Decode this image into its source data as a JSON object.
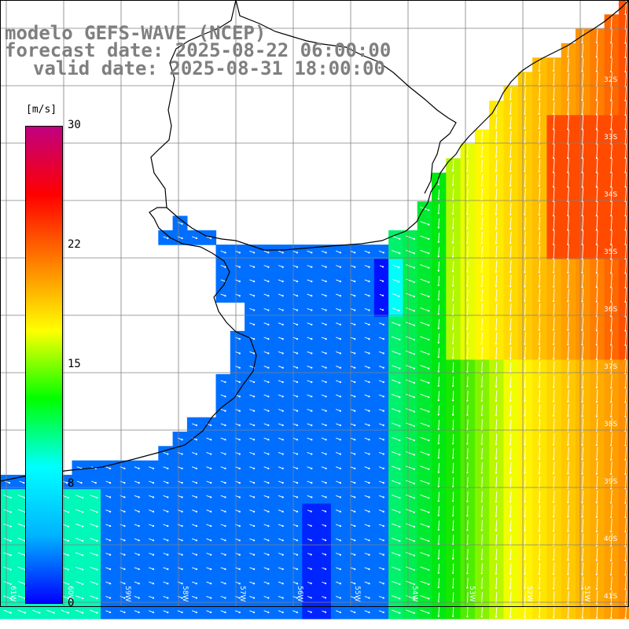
{
  "header": {
    "model": "modelo GEFS-WAVE (NCEP)",
    "forecast": "forecast date: 2025-08-22 06:00:00",
    "valid": "valid date: 2025-08-31 18:00:00"
  },
  "colorbar": {
    "units": "[m/s]",
    "ticks": [
      "30",
      "22",
      "15",
      "8",
      "0"
    ],
    "stops": [
      "#0000ff",
      "#00b4ff",
      "#00ffff",
      "#00ff00",
      "#ffff00",
      "#ff8000",
      "#ff0000",
      "#c00080"
    ]
  },
  "map": {
    "lat_labels": [
      "32S",
      "33S",
      "34S",
      "35S",
      "36S",
      "37S",
      "38S",
      "39S",
      "40S",
      "41S"
    ],
    "lon_labels": [
      "61W",
      "60W",
      "59W",
      "58W",
      "57W",
      "56W",
      "55W",
      "54W",
      "53W",
      "52W",
      "51W"
    ],
    "land_color": "#ffffff",
    "grid_color": "#808080"
  }
}
